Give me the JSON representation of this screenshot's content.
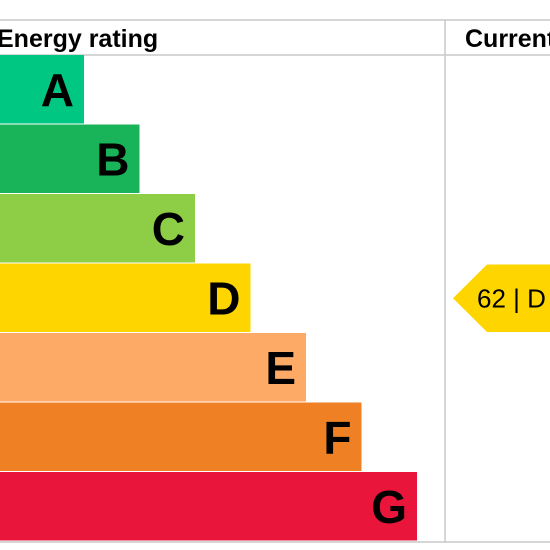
{
  "header": {
    "rating_label": "Energy rating",
    "current_label": "Current"
  },
  "chart_data": {
    "type": "bar",
    "categories": [
      "A",
      "B",
      "C",
      "D",
      "E",
      "F",
      "G"
    ],
    "colors": [
      "#00c781",
      "#19b459",
      "#8dce46",
      "#ffd500",
      "#fcaa65",
      "#ef8023",
      "#e9153b"
    ],
    "current": {
      "score": "62",
      "band": "D",
      "text": "62 | D",
      "color": "#ffd500"
    }
  }
}
